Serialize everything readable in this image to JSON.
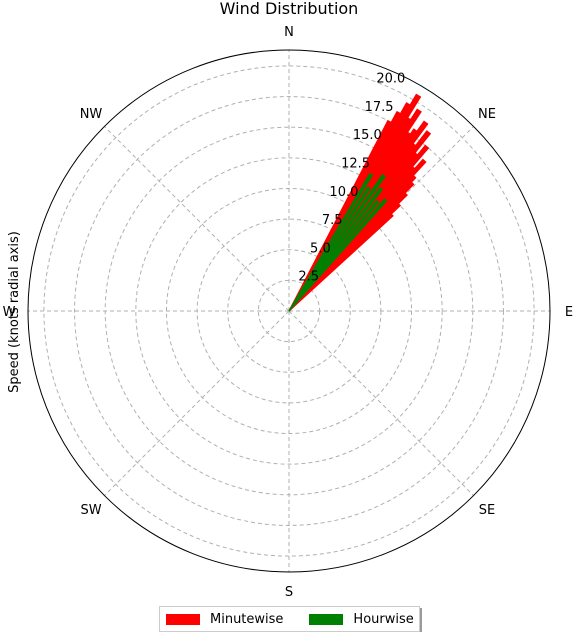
{
  "chart_data": {
    "type": "polar-bar",
    "title": "Wind Distribution",
    "ylabel": "Speed (knots radial axis)",
    "direction_labels": [
      "N",
      "NE",
      "E",
      "SE",
      "S",
      "SW",
      "W",
      "NW"
    ],
    "radial_ticks": [
      "2.5",
      "5.0",
      "7.5",
      "10.0",
      "12.5",
      "15.0",
      "17.5",
      "20.0"
    ],
    "rlim": [
      0,
      21.3
    ],
    "grid": true,
    "legend_position": "bottom-center",
    "series": [
      {
        "name": "Minutewise",
        "color": "#ff0000",
        "bars": [
          {
            "direction_deg": 28,
            "speed": 17.5
          },
          {
            "direction_deg": 29,
            "speed": 18.5
          },
          {
            "direction_deg": 30,
            "speed": 19.5
          },
          {
            "direction_deg": 30.5,
            "speed": 17.0
          },
          {
            "direction_deg": 31,
            "speed": 20.5
          },
          {
            "direction_deg": 32,
            "speed": 18.5
          },
          {
            "direction_deg": 33,
            "speed": 19.5
          },
          {
            "direction_deg": 34,
            "speed": 17.5
          },
          {
            "direction_deg": 35,
            "speed": 18.0
          },
          {
            "direction_deg": 36,
            "speed": 19.0
          },
          {
            "direction_deg": 37,
            "speed": 17.0
          },
          {
            "direction_deg": 38,
            "speed": 18.5
          },
          {
            "direction_deg": 39,
            "speed": 16.5
          },
          {
            "direction_deg": 40,
            "speed": 17.5
          },
          {
            "direction_deg": 41,
            "speed": 15.5
          },
          {
            "direction_deg": 42,
            "speed": 16.5
          },
          {
            "direction_deg": 43,
            "speed": 15.0
          },
          {
            "direction_deg": 44,
            "speed": 14.5
          },
          {
            "direction_deg": 45,
            "speed": 13.5
          },
          {
            "direction_deg": 46,
            "speed": 12.5
          },
          {
            "direction_deg": 47,
            "speed": 11.5
          }
        ]
      },
      {
        "name": "Hourwise",
        "color": "#008000",
        "bars": [
          {
            "direction_deg": 31,
            "speed": 13.0
          },
          {
            "direction_deg": 33,
            "speed": 12.0
          },
          {
            "direction_deg": 35,
            "speed": 13.5
          },
          {
            "direction_deg": 37,
            "speed": 12.5
          },
          {
            "direction_deg": 39,
            "speed": 11.5
          },
          {
            "direction_deg": 41,
            "speed": 12.0
          }
        ]
      }
    ]
  }
}
